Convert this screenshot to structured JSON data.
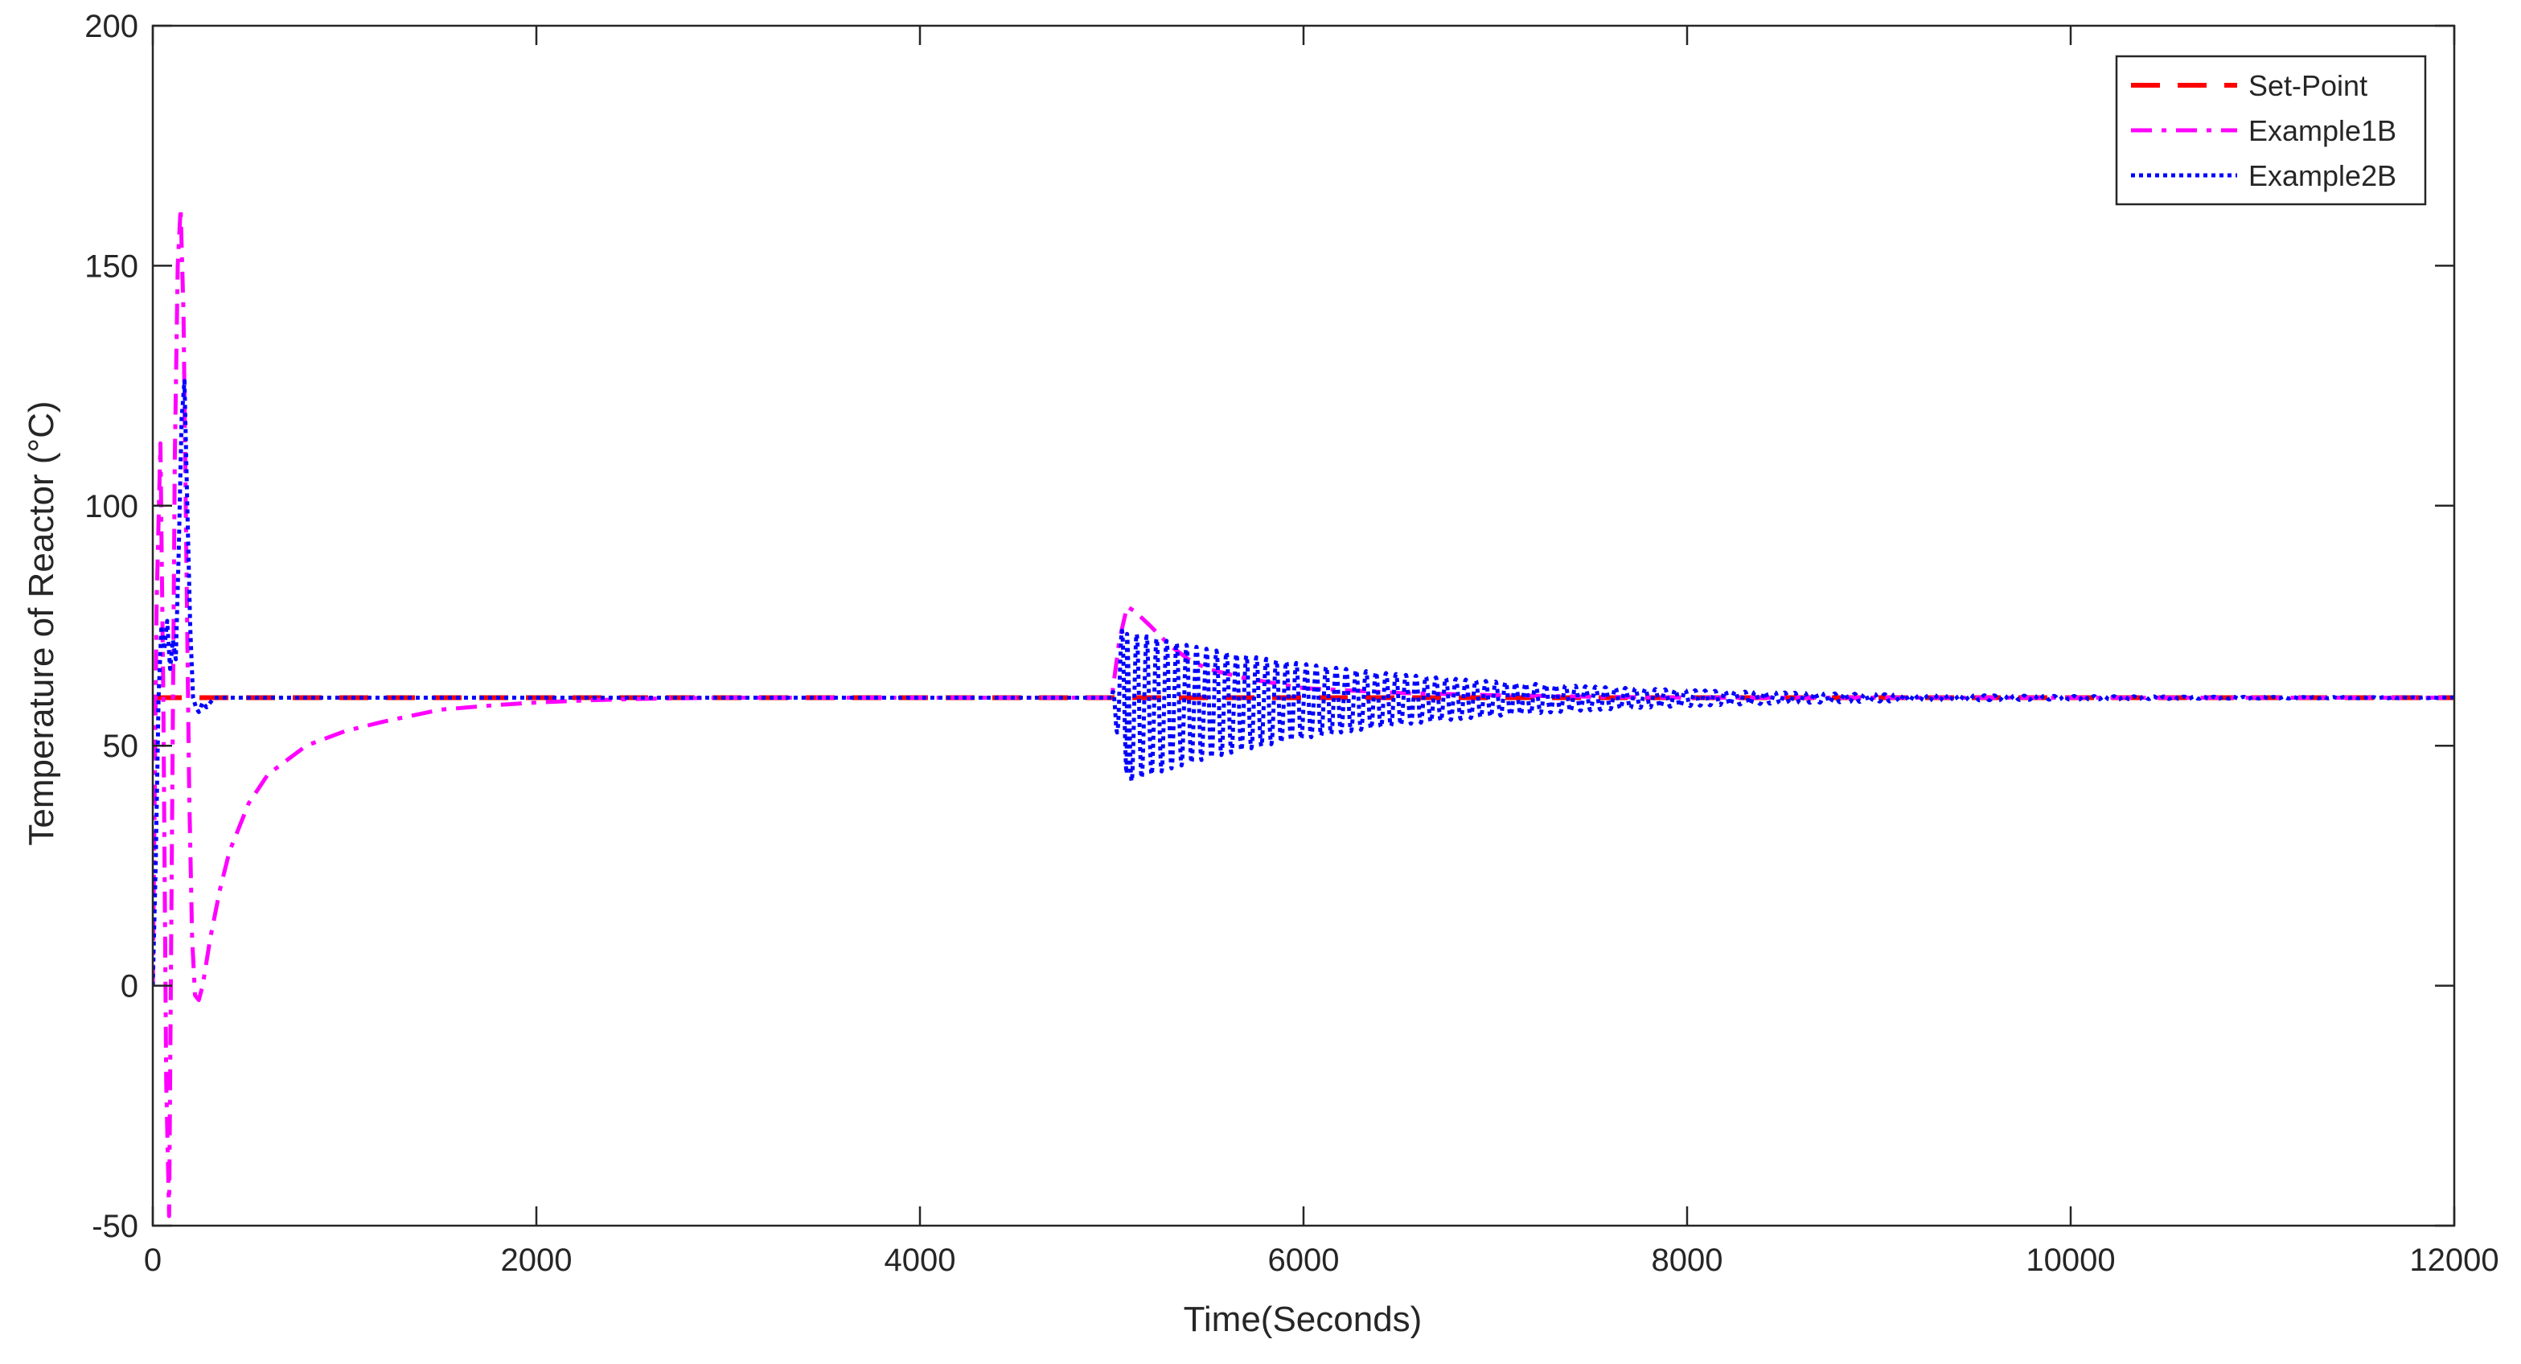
{
  "chart_data": {
    "type": "line",
    "title": "",
    "xlabel": "Time(Seconds)",
    "ylabel": "Temperature of Reactor (°C)",
    "xlim": [
      0,
      12000
    ],
    "ylim": [
      -50,
      200
    ],
    "xticks": [
      0,
      2000,
      4000,
      6000,
      8000,
      10000,
      12000
    ],
    "yticks": [
      -50,
      0,
      50,
      100,
      150,
      200
    ],
    "xtick_labels": [
      "0",
      "2000",
      "4000",
      "6000",
      "8000",
      "10000",
      "12000"
    ],
    "ytick_labels": [
      "-50",
      "0",
      "50",
      "100",
      "150",
      "200"
    ],
    "grid": false,
    "legend_position": "top-right",
    "series": [
      {
        "name": "Set-Point",
        "color": "#ff0000",
        "style": "dashed",
        "x": [
          0,
          12000
        ],
        "y": [
          60,
          60
        ]
      },
      {
        "name": "Example1B",
        "color": "#ff00ff",
        "style": "dash-dot",
        "x": [
          0,
          20,
          40,
          55,
          70,
          85,
          100,
          115,
          130,
          145,
          160,
          175,
          190,
          205,
          220,
          240,
          260,
          280,
          300,
          350,
          400,
          500,
          600,
          800,
          1000,
          1200,
          1500,
          1800,
          2000,
          2300,
          2600,
          3000,
          4000,
          5000,
          5040,
          5080,
          5120,
          5200,
          5300,
          5400,
          5500,
          5700,
          6000,
          6500,
          7000,
          7500,
          8000,
          9000,
          10000,
          12000
        ],
        "y": [
          0,
          80,
          113,
          60,
          -20,
          -48,
          30,
          110,
          150,
          162,
          140,
          90,
          40,
          10,
          -2,
          -3,
          0,
          5,
          10,
          20,
          28,
          38,
          44,
          50,
          53,
          55,
          57.5,
          58.5,
          59,
          59.5,
          59.8,
          60,
          60,
          60,
          72,
          79,
          78,
          75,
          71,
          68,
          66,
          64,
          62,
          61,
          60.5,
          60.2,
          60,
          60,
          60,
          60
        ]
      },
      {
        "name": "Example2B",
        "color": "#0000ff",
        "style": "dotted",
        "x": [
          0,
          15,
          30,
          45,
          60,
          75,
          90,
          105,
          120,
          135,
          150,
          165,
          180,
          195,
          210,
          225,
          240,
          260,
          280,
          300,
          320,
          350,
          400,
          500,
          1000,
          2000,
          3000,
          4000,
          5000
        ],
        "y": [
          0,
          25,
          60,
          75,
          70,
          76,
          66,
          72,
          68,
          90,
          118,
          126,
          100,
          75,
          60,
          58,
          57,
          59,
          58,
          59,
          60,
          60,
          60,
          60,
          60,
          60,
          60,
          60,
          60
        ]
      }
    ]
  }
}
